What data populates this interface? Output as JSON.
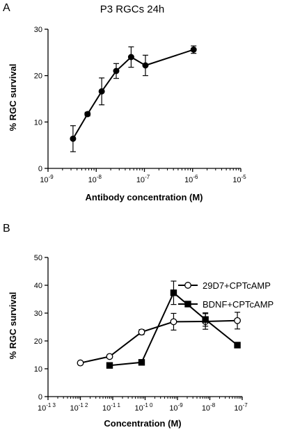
{
  "chart_data": [
    {
      "type": "line",
      "panel_label": "A",
      "title": "P3 RGCs 24h",
      "xlabel": "Antibody concentration (M)",
      "ylabel": "% RGC survival",
      "xscale": "log",
      "xlim": [
        1e-09,
        1e-05
      ],
      "xticks": [
        {
          "base": "10",
          "exp": "-9"
        },
        {
          "base": "10",
          "exp": "-8"
        },
        {
          "base": "10",
          "exp": "-7"
        },
        {
          "base": "10",
          "exp": "-6"
        },
        {
          "base": "10",
          "exp": "-5"
        }
      ],
      "ylim": [
        0,
        30
      ],
      "yticks": [
        "0",
        "10",
        "20",
        "30"
      ],
      "grid": false,
      "series": [
        {
          "marker": "filled-circle",
          "points": [
            {
              "x": 3.3e-09,
              "y": 6.4,
              "err": 2.8
            },
            {
              "x": 6.6e-09,
              "y": 11.7,
              "err": 0.4
            },
            {
              "x": 1.3e-08,
              "y": 16.6,
              "err": 2.9
            },
            {
              "x": 2.6e-08,
              "y": 21.0,
              "err": 1.6
            },
            {
              "x": 5.3e-08,
              "y": 24.0,
              "err": 2.2
            },
            {
              "x": 1.05e-07,
              "y": 22.2,
              "err": 2.2
            },
            {
              "x": 1.05e-06,
              "y": 25.6,
              "err": 0.8
            }
          ]
        }
      ]
    },
    {
      "type": "line",
      "panel_label": "B",
      "title": "",
      "xlabel": "Concentration (M)",
      "ylabel": "% RGC survival",
      "xscale": "log",
      "xlim": [
        1e-13,
        1e-07
      ],
      "xticks": [
        {
          "base": "10",
          "exp": "-1 3"
        },
        {
          "base": "10",
          "exp": "-1 2"
        },
        {
          "base": "10",
          "exp": "-1 1"
        },
        {
          "base": "10",
          "exp": "-1 0"
        },
        {
          "base": "10",
          "exp": "-9"
        },
        {
          "base": "10",
          "exp": "-8"
        },
        {
          "base": "10",
          "exp": "-7"
        }
      ],
      "ylim": [
        0,
        50
      ],
      "yticks": [
        "0",
        "10",
        "20",
        "30",
        "40",
        "50"
      ],
      "grid": false,
      "legend_position": "top-right",
      "series": [
        {
          "name": "29D7+CPTcAMP",
          "marker": "open-circle",
          "points": [
            {
              "x": 1e-12,
              "y": 12.1,
              "err": 0
            },
            {
              "x": 8e-12,
              "y": 14.4,
              "err": 0.6
            },
            {
              "x": 7.8e-11,
              "y": 23.2,
              "err": 0.9
            },
            {
              "x": 7.6e-10,
              "y": 26.9,
              "err": 3.0
            },
            {
              "x": 7.3e-09,
              "y": 27.0,
              "err": 2.8
            },
            {
              "x": 7.1e-08,
              "y": 27.3,
              "err": 3.0
            }
          ]
        },
        {
          "name": "BDNF+CPTcAMP",
          "marker": "filled-square",
          "points": [
            {
              "x": 8e-12,
              "y": 11.2,
              "err": 0
            },
            {
              "x": 7.8e-11,
              "y": 12.3,
              "err": 0
            },
            {
              "x": 7.6e-10,
              "y": 37.3,
              "err": 4.2
            },
            {
              "x": 7.3e-09,
              "y": 27.7,
              "err": 2.4
            },
            {
              "x": 7.1e-08,
              "y": 18.5,
              "err": 0
            }
          ]
        }
      ]
    }
  ]
}
